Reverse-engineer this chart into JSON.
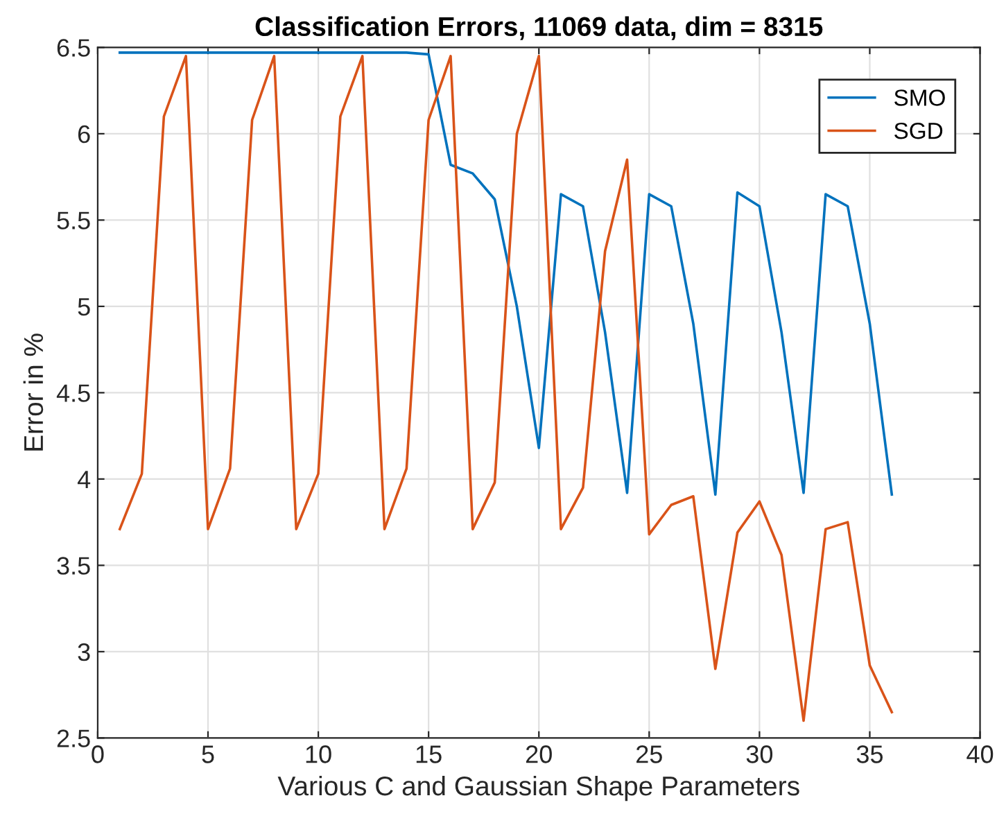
{
  "chart_data": {
    "type": "line",
    "title": "Classification Errors, 11069 data, dim = 8315",
    "xlabel": "Various C and Gaussian Shape Parameters",
    "ylabel": "Error in %",
    "x": [
      1,
      2,
      3,
      4,
      5,
      6,
      7,
      8,
      9,
      10,
      11,
      12,
      13,
      14,
      15,
      16,
      17,
      18,
      19,
      20,
      21,
      22,
      23,
      24,
      25,
      26,
      27,
      28,
      29,
      30,
      31,
      32,
      33,
      34,
      35,
      36
    ],
    "series": [
      {
        "name": "SMO",
        "color": "#0072bd",
        "values": [
          6.47,
          6.47,
          6.47,
          6.47,
          6.47,
          6.47,
          6.47,
          6.47,
          6.47,
          6.47,
          6.47,
          6.47,
          6.47,
          6.47,
          6.46,
          5.82,
          5.77,
          5.62,
          5.0,
          4.18,
          5.65,
          5.58,
          4.85,
          3.92,
          5.65,
          5.58,
          4.9,
          3.91,
          5.66,
          5.58,
          4.85,
          3.92,
          5.65,
          5.58,
          4.9,
          3.91
        ]
      },
      {
        "name": "SGD",
        "color": "#d95319",
        "values": [
          3.71,
          4.03,
          6.1,
          6.45,
          3.71,
          4.06,
          6.08,
          6.45,
          3.71,
          4.03,
          6.1,
          6.45,
          3.71,
          4.06,
          6.08,
          6.45,
          3.71,
          3.98,
          6.0,
          6.45,
          3.71,
          3.95,
          5.32,
          5.85,
          3.68,
          3.85,
          3.9,
          2.9,
          3.69,
          3.87,
          3.56,
          2.6,
          3.71,
          3.75,
          2.92,
          2.65
        ]
      }
    ],
    "xlim": [
      0,
      40
    ],
    "xticks": [
      0,
      5,
      10,
      15,
      20,
      25,
      30,
      35,
      40
    ],
    "ylim": [
      2.5,
      6.5
    ],
    "yticks": [
      2.5,
      3,
      3.5,
      4,
      4.5,
      5,
      5.5,
      6,
      6.5
    ],
    "grid": true,
    "legend": "top right",
    "marker": "none",
    "line_style": "solid"
  }
}
